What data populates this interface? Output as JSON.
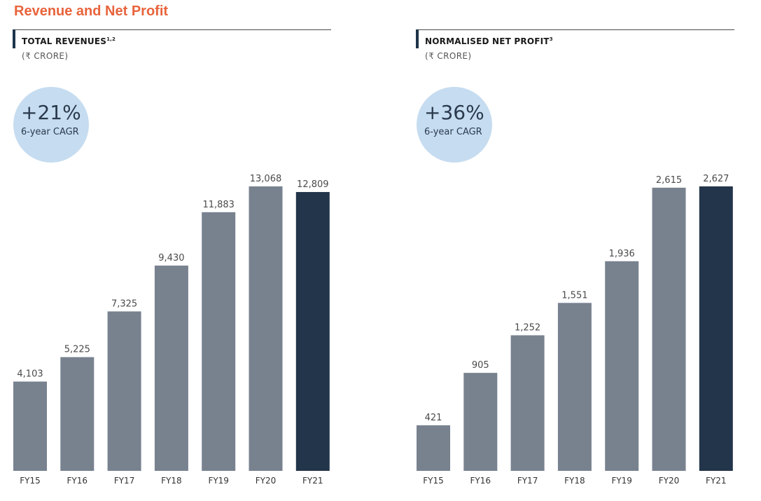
{
  "page_title": "Revenue and Net Profit",
  "colors": {
    "bar": "#78828f",
    "bar_highlight": "#22354a",
    "title": "#e8643c",
    "circle": "#c6dcf0"
  },
  "chart_data": [
    {
      "type": "bar",
      "title": "TOTAL REVENUES",
      "title_sup": "1,2",
      "unit": "(₹ CRORE)",
      "cagr_value": "+21%",
      "cagr_label": "6-year CAGR",
      "categories": [
        "FY15",
        "FY16",
        "FY17",
        "FY18",
        "FY19",
        "FY20",
        "FY21"
      ],
      "values": [
        4103,
        5225,
        7325,
        9430,
        11883,
        13068,
        12809
      ],
      "value_labels": [
        "4,103",
        "5,225",
        "7,325",
        "9,430",
        "11,883",
        "13,068",
        "12,809"
      ],
      "highlight": "FY21",
      "ylim": [
        0,
        15000
      ],
      "xlabel": "",
      "ylabel": ""
    },
    {
      "type": "bar",
      "title": "NORMALISED NET PROFIT",
      "title_sup": "3",
      "unit": "(₹ CRORE)",
      "cagr_value": "+36%",
      "cagr_label": "6-year CAGR",
      "categories": [
        "FY15",
        "FY16",
        "FY17",
        "FY18",
        "FY19",
        "FY20",
        "FY21"
      ],
      "values": [
        421,
        905,
        1252,
        1551,
        1936,
        2615,
        2627
      ],
      "value_labels": [
        "421",
        "905",
        "1,252",
        "1,551",
        "1,936",
        "2,615",
        "2,627"
      ],
      "highlight": "FY21",
      "ylim": [
        0,
        3000
      ],
      "xlabel": "",
      "ylabel": ""
    }
  ]
}
